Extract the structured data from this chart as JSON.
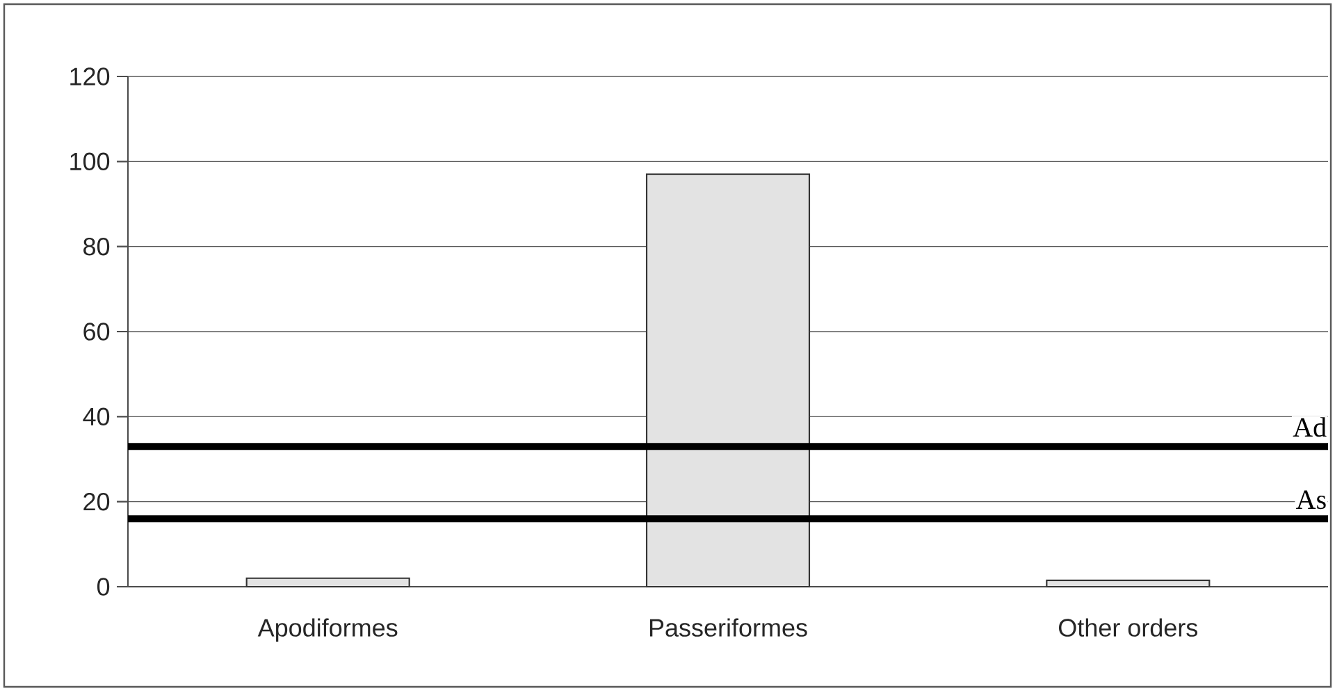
{
  "chart_data": {
    "type": "bar",
    "categories": [
      "Apodiformes",
      "Passeriformes",
      "Other orders"
    ],
    "values": [
      2,
      97,
      1.5
    ],
    "color": "#e3e3e3",
    "ylim": [
      0,
      120
    ],
    "yticks": [
      0,
      20,
      40,
      60,
      80,
      100,
      120
    ],
    "grid": "y",
    "ref_lines": [
      {
        "axis": "y",
        "value": 33,
        "label": "Ad",
        "color": "#000000"
      },
      {
        "axis": "y",
        "value": 16,
        "label": "As",
        "color": "#000000"
      }
    ]
  }
}
